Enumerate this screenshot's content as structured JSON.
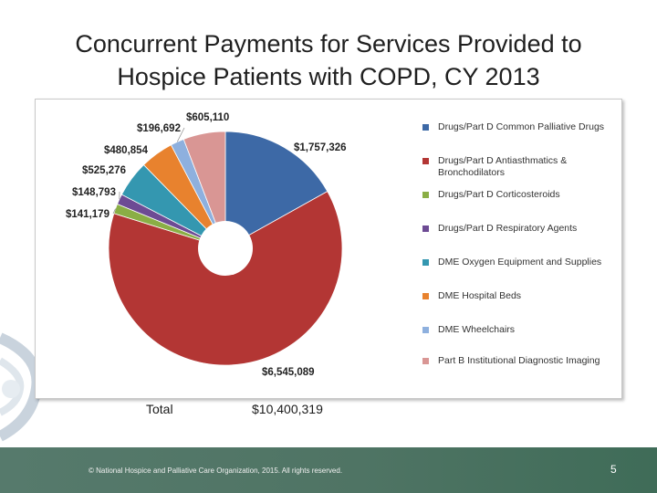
{
  "slide": {
    "title_line1": "Concurrent Payments for Services Provided to",
    "title_line2": "Hospice Patients with COPD, CY 2013"
  },
  "chart_data": {
    "type": "pie",
    "title": "Concurrent Payments for Services Provided to Hospice Patients with COPD, CY 2013",
    "legend_position": "right",
    "donut_hole": true,
    "series": [
      {
        "name": "Drugs/Part D Common Palliative Drugs",
        "value": 1757326,
        "label": "$1,757,326",
        "color": "#3d69a6"
      },
      {
        "name": "Drugs/Part D Antiasthmatics & Bronchodilators",
        "value": 6545089,
        "label": "$6,545,089",
        "color": "#b33634"
      },
      {
        "name": "Drugs/Part D Corticosteroids",
        "value": 141179,
        "label": "$141,179",
        "color": "#8aae45"
      },
      {
        "name": "Drugs/Part D Respiratory Agents",
        "value": 148793,
        "label": "$148,793",
        "color": "#6d4b94"
      },
      {
        "name": "DME Oxygen Equipment and Supplies",
        "value": 525276,
        "label": "$525,276",
        "color": "#3497b0"
      },
      {
        "name": "DME Hospital Beds",
        "value": 480854,
        "label": "$480,854",
        "color": "#e8822e"
      },
      {
        "name": "DME Wheelchairs",
        "value": 196692,
        "label": "$196,692",
        "color": "#8eb0de"
      },
      {
        "name": "Part B Institutional Diagnostic Imaging",
        "value": 605110,
        "label": "$605,110",
        "color": "#d99694"
      }
    ]
  },
  "total": {
    "label": "Total",
    "value": "$10,400,319"
  },
  "footer": {
    "copyright": "© National Hospice and Palliative Care Organization, 2015. All rights reserved.",
    "page_number": "5"
  }
}
